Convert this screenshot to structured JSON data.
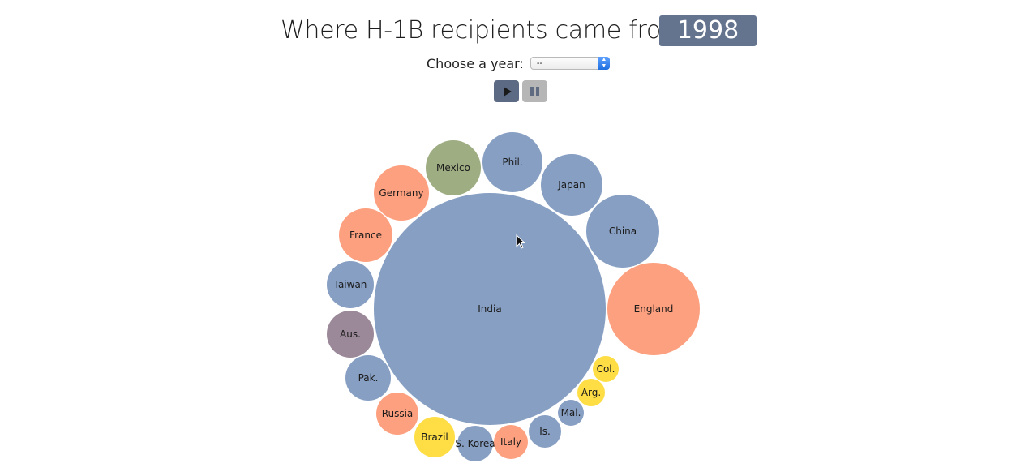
{
  "header": {
    "title": "Where H-1B recipients came from",
    "year": "1998"
  },
  "chooser": {
    "label": "Choose a year:",
    "selected": "--"
  },
  "controls": {
    "play_icon": "play-icon",
    "pause_icon": "pause-icon"
  },
  "colors": {
    "blue": "#879fc3",
    "orange": "#fda07f",
    "green": "#9ead82",
    "purple": "#9b8999",
    "yellow": "#fedd45",
    "badge": "#64748f"
  },
  "chart_data": {
    "type": "bubble",
    "title": "Where H-1B recipients came from",
    "year": "1998",
    "bubbles": [
      {
        "label": "India",
        "color": "blue"
      },
      {
        "label": "England",
        "color": "orange"
      },
      {
        "label": "China",
        "color": "blue"
      },
      {
        "label": "Japan",
        "color": "blue"
      },
      {
        "label": "Phil.",
        "color": "blue"
      },
      {
        "label": "Mexico",
        "color": "green"
      },
      {
        "label": "Germany",
        "color": "orange"
      },
      {
        "label": "France",
        "color": "orange"
      },
      {
        "label": "Taiwan",
        "color": "blue"
      },
      {
        "label": "Aus.",
        "color": "purple"
      },
      {
        "label": "Pak.",
        "color": "blue"
      },
      {
        "label": "Russia",
        "color": "orange"
      },
      {
        "label": "Brazil",
        "color": "yellow"
      },
      {
        "label": "S. Korea",
        "color": "blue"
      },
      {
        "label": "Italy",
        "color": "orange"
      },
      {
        "label": "Is.",
        "color": "blue"
      },
      {
        "label": "Mal.",
        "color": "blue"
      },
      {
        "label": "Arg.",
        "color": "yellow"
      },
      {
        "label": "Col.",
        "color": "yellow"
      }
    ]
  }
}
